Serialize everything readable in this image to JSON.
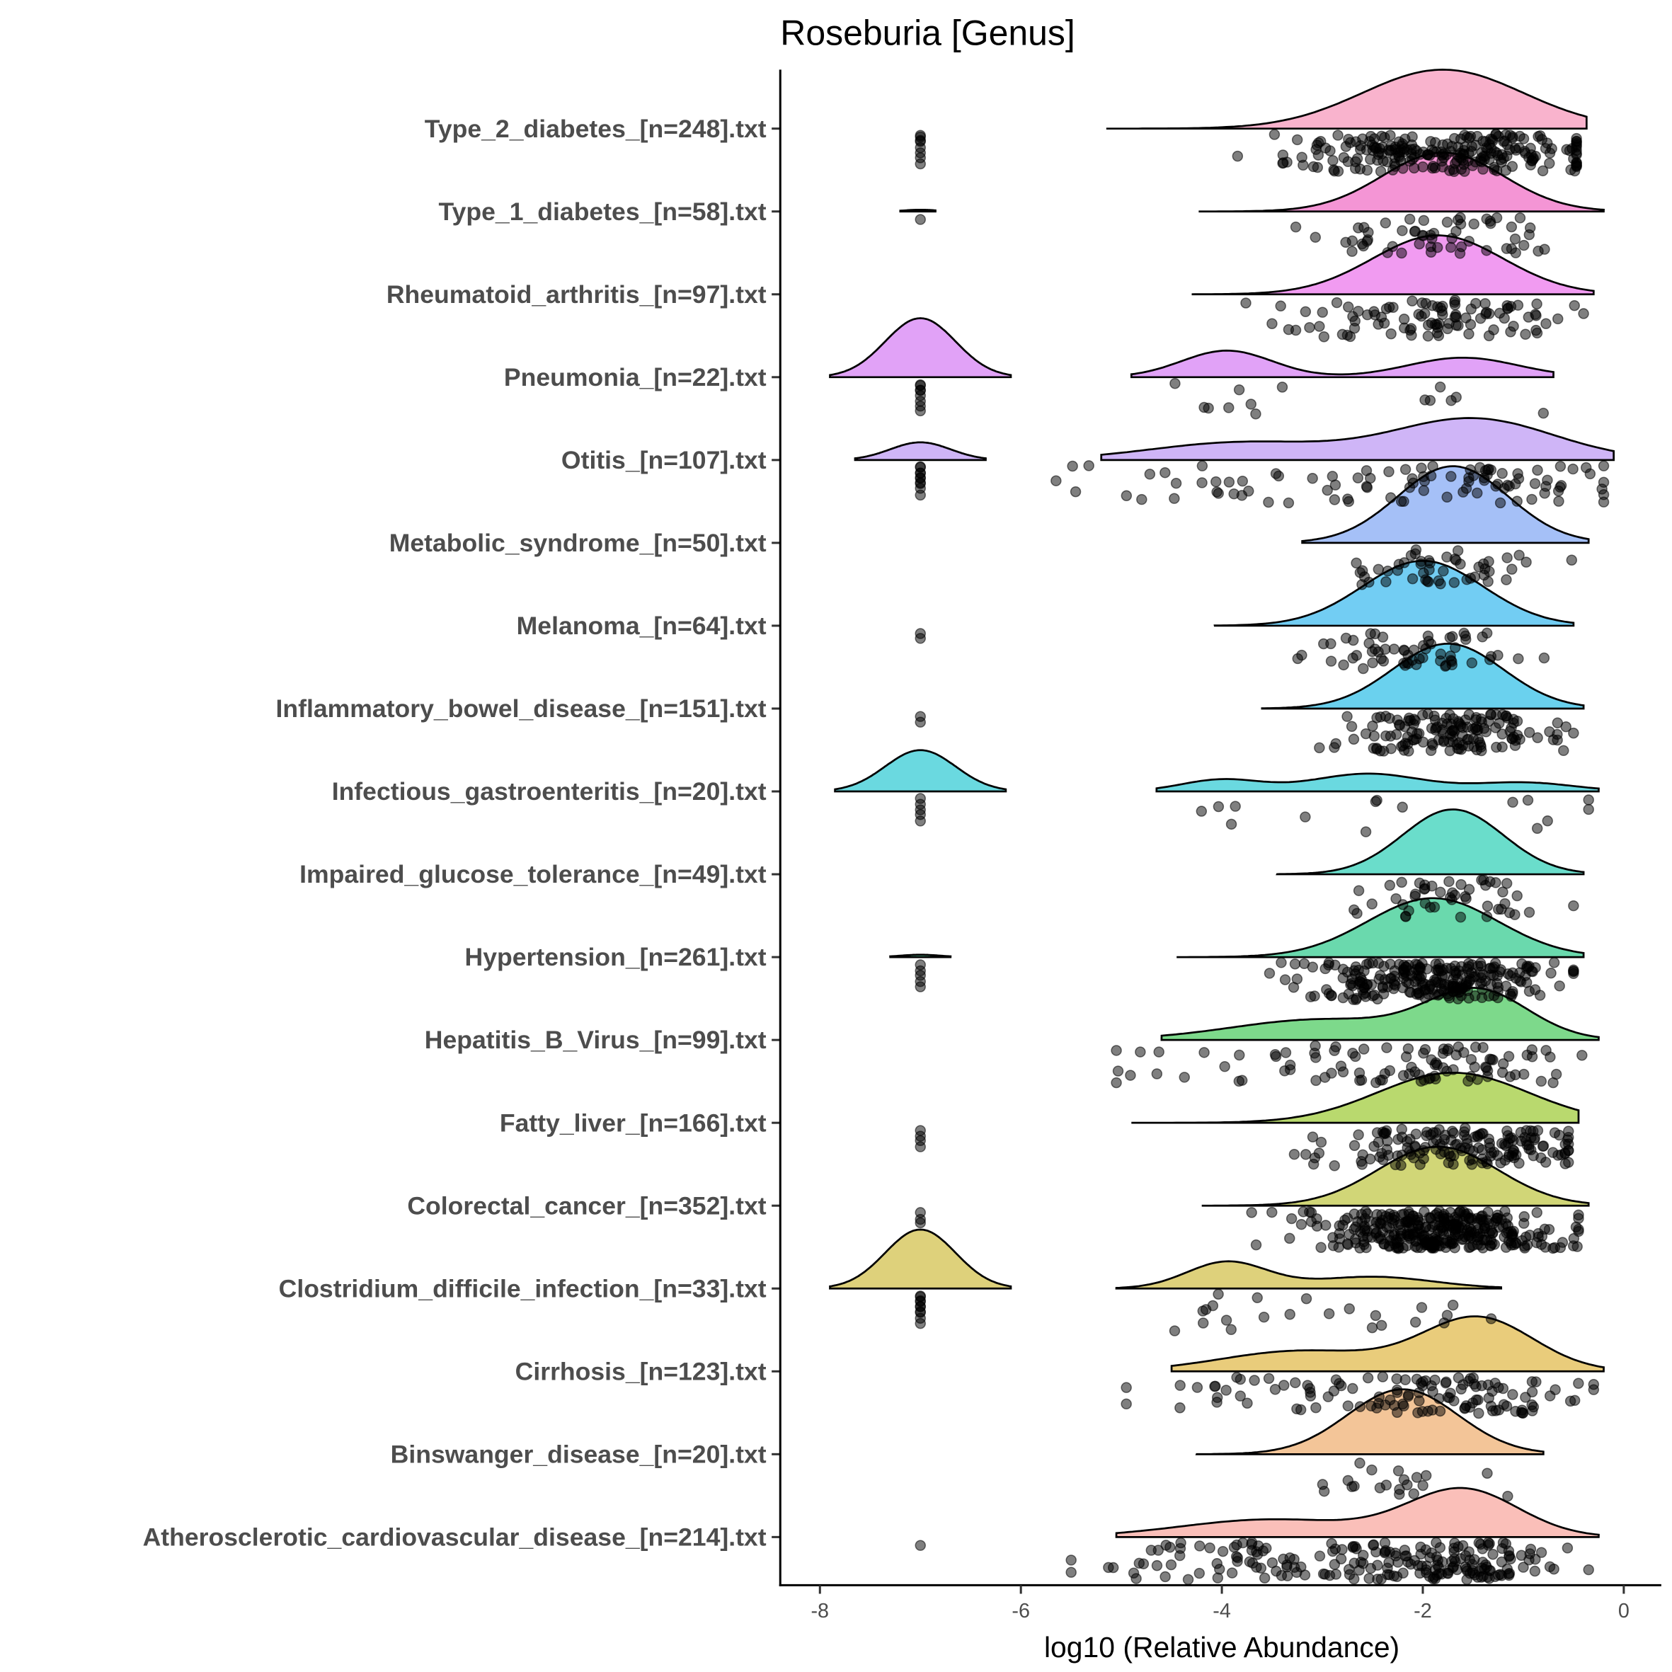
{
  "chart_data": {
    "type": "ridgeline",
    "title": "Roseburia [Genus]",
    "xlabel": "log10 (Relative Abundance)",
    "ylabel": "",
    "xlim": [
      -8.4,
      0.35
    ],
    "xticks": [
      -8,
      -6,
      -4,
      -2,
      0
    ],
    "xtick_labels": [
      "-8",
      "-6",
      "-4",
      "-2",
      "0"
    ],
    "zero_value": -7,
    "groups": [
      {
        "label": "Type_2_diabetes_[n=248].txt",
        "n": 248,
        "zeros": 8,
        "color": "#F8A0C0",
        "segments": [
          {
            "range": [
              -5.15,
              -0.37
            ],
            "comps": [
              [
                -1.8,
                0.8,
                1
              ]
            ]
          }
        ]
      },
      {
        "label": "Type_1_diabetes_[n=58].txt",
        "n": 58,
        "zeros": 1,
        "color": "#F17ACB",
        "segments": [
          {
            "range": [
              -7.2,
              -6.85
            ],
            "comps": [
              [
                -7,
                0.15,
                0.03
              ]
            ]
          },
          {
            "range": [
              -4.23,
              -0.2
            ],
            "comps": [
              [
                -1.8,
                0.6,
                1
              ]
            ]
          }
        ]
      },
      {
        "label": "Rheumatoid_arthritis_[n=97].txt",
        "n": 97,
        "zeros": 0,
        "color": "#EE82EE",
        "segments": [
          {
            "range": [
              -4.3,
              -0.3
            ],
            "comps": [
              [
                -1.85,
                0.65,
                1
              ]
            ]
          }
        ]
      },
      {
        "label": "Pneumonia_[n=22].txt",
        "n": 22,
        "zeros": 8,
        "color": "#D98BF5",
        "segments": [
          {
            "range": [
              -7.9,
              -6.1
            ],
            "comps": [
              [
                -7,
                0.35,
                1
              ]
            ]
          },
          {
            "range": [
              -4.9,
              -0.7
            ],
            "comps": [
              [
                -3.95,
                0.45,
                0.45
              ],
              [
                -1.6,
                0.55,
                0.33
              ]
            ]
          }
        ]
      },
      {
        "label": "Otitis_[n=107].txt",
        "n": 107,
        "zeros": 10,
        "color": "#C3A3F5",
        "segments": [
          {
            "range": [
              -7.65,
              -6.35
            ],
            "comps": [
              [
                -7,
                0.3,
                0.3
              ]
            ]
          },
          {
            "range": [
              -5.2,
              -0.1
            ],
            "comps": [
              [
                -1.5,
                0.8,
                0.7
              ],
              [
                -3.8,
                0.9,
                0.3
              ]
            ]
          }
        ]
      },
      {
        "label": "Metabolic_syndrome_[n=50].txt",
        "n": 50,
        "zeros": 0,
        "color": "#8FB0F5",
        "segments": [
          {
            "range": [
              -3.2,
              -0.35
            ],
            "comps": [
              [
                -1.7,
                0.55,
                1.3
              ]
            ]
          }
        ]
      },
      {
        "label": "Melanoma_[n=64].txt",
        "n": 64,
        "zeros": 2,
        "color": "#4FC0F0",
        "segments": [
          {
            "range": [
              -4.07,
              -0.5
            ],
            "comps": [
              [
                -2.0,
                0.6,
                1.1
              ]
            ]
          }
        ]
      },
      {
        "label": "Inflammatory_bowel_disease_[n=151].txt",
        "n": 151,
        "zeros": 2,
        "color": "#45C5EA",
        "segments": [
          {
            "range": [
              -3.6,
              -0.4
            ],
            "comps": [
              [
                -1.75,
                0.55,
                1.1
              ]
            ]
          }
        ]
      },
      {
        "label": "Infectious_gastroenteritis_[n=20].txt",
        "n": 20,
        "zeros": 5,
        "color": "#45D0D8",
        "segments": [
          {
            "range": [
              -7.85,
              -6.15
            ],
            "comps": [
              [
                -7,
                0.35,
                0.7
              ]
            ]
          },
          {
            "range": [
              -4.65,
              -0.25
            ],
            "comps": [
              [
                -2.55,
                0.55,
                0.3
              ],
              [
                -4,
                0.4,
                0.2
              ],
              [
                -1,
                0.5,
                0.15
              ]
            ]
          }
        ]
      },
      {
        "label": "Impaired_glucose_tolerance_[n=49].txt",
        "n": 49,
        "zeros": 0,
        "color": "#45D4BE",
        "segments": [
          {
            "range": [
              -3.45,
              -0.4
            ],
            "comps": [
              [
                -1.7,
                0.5,
                1.1
              ]
            ]
          }
        ]
      },
      {
        "label": "Hypertension_[n=261].txt",
        "n": 261,
        "zeros": 5,
        "color": "#45CF98",
        "segments": [
          {
            "range": [
              -7.3,
              -6.7
            ],
            "comps": [
              [
                -7,
                0.2,
                0.04
              ]
            ]
          },
          {
            "range": [
              -4.45,
              -0.4
            ],
            "comps": [
              [
                -1.9,
                0.65,
                1
              ]
            ]
          }
        ]
      },
      {
        "label": "Hepatitis_B_Virus_[n=99].txt",
        "n": 99,
        "zeros": 0,
        "color": "#5DCF6E",
        "segments": [
          {
            "range": [
              -4.6,
              -0.25
            ],
            "comps": [
              [
                -1.45,
                0.5,
                0.8
              ],
              [
                -3,
                0.9,
                0.35
              ]
            ]
          }
        ]
      },
      {
        "label": "Fatty_liver_[n=166].txt",
        "n": 166,
        "zeros": 4,
        "color": "#A7D04A",
        "segments": [
          {
            "range": [
              -4.9,
              -0.45
            ],
            "comps": [
              [
                -1.7,
                0.75,
                0.85
              ]
            ]
          }
        ]
      },
      {
        "label": "Colorectal_cancer_[n=352].txt",
        "n": 352,
        "zeros": 3,
        "color": "#C6CC55",
        "segments": [
          {
            "range": [
              -4.2,
              -0.35
            ],
            "comps": [
              [
                -1.85,
                0.6,
                1
              ]
            ]
          }
        ]
      },
      {
        "label": "Clostridium_difficile_infection_[n=33].txt",
        "n": 33,
        "zeros": 10,
        "color": "#D6C65A",
        "segments": [
          {
            "range": [
              -7.9,
              -6.1
            ],
            "comps": [
              [
                -7,
                0.35,
                1
              ]
            ]
          },
          {
            "range": [
              -5.05,
              -1.22
            ],
            "comps": [
              [
                -3.95,
                0.4,
                0.45
              ],
              [
                -2.5,
                0.6,
                0.2
              ]
            ]
          }
        ]
      },
      {
        "label": "Cirrhosis_[n=123].txt",
        "n": 123,
        "zeros": 0,
        "color": "#E3BF5A",
        "segments": [
          {
            "range": [
              -4.5,
              -0.2
            ],
            "comps": [
              [
                -1.45,
                0.55,
                0.9
              ],
              [
                -3.2,
                0.8,
                0.35
              ]
            ]
          }
        ]
      },
      {
        "label": "Binswanger_disease_[n=20].txt",
        "n": 20,
        "zeros": 0,
        "color": "#F0B77E",
        "segments": [
          {
            "range": [
              -4.25,
              -0.8
            ],
            "comps": [
              [
                -2.2,
                0.55,
                1.1
              ]
            ]
          }
        ]
      },
      {
        "label": "Atherosclerotic_cardiovascular_disease_[n=214].txt",
        "n": 214,
        "zeros": 1,
        "color": "#F9AFA8",
        "segments": [
          {
            "range": [
              -5.05,
              -0.25
            ],
            "comps": [
              [
                -1.6,
                0.55,
                0.8
              ],
              [
                -3.5,
                0.9,
                0.3
              ]
            ]
          }
        ]
      }
    ]
  }
}
